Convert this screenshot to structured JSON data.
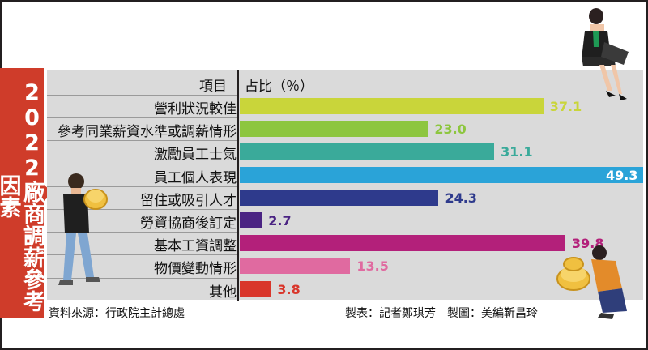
{
  "title": "2022廠商調薪參考因素",
  "colors": {
    "title_bg": "#cf3c2a",
    "panel_bg": "#dadada"
  },
  "chart_data": {
    "type": "bar",
    "orientation": "horizontal",
    "title": "2022廠商調薪參考因素",
    "category_header": "項目",
    "value_header": "占比（％）",
    "categories": [
      "營利狀況較佳",
      "參考同業薪資水準或調薪情形",
      "激勵員工士氣",
      "員工個人表現",
      "留住或吸引人才",
      "勞資協商後訂定",
      "基本工資調整",
      "物價變動情形",
      "其他"
    ],
    "values": [
      37.1,
      23.0,
      31.1,
      49.3,
      24.3,
      2.7,
      39.8,
      13.5,
      3.8
    ],
    "value_labels": [
      "37.1",
      "23.0",
      "31.1",
      "49.3",
      "24.3",
      "2.7",
      "39.8",
      "13.5",
      "3.8"
    ],
    "colors": [
      "#c9d53a",
      "#8dc63f",
      "#3aaa9a",
      "#2aa3d8",
      "#2e3a8c",
      "#4b2483",
      "#b3207a",
      "#e06aa0",
      "#d9362b"
    ],
    "xlim": [
      0,
      49.3
    ],
    "grid": false,
    "legend": "none"
  },
  "footer": {
    "source": "資料來源：行政院主計總處",
    "credits": "製表：記者鄭琪芳　製圖：美編靳昌玲"
  },
  "icons": {
    "top": "businesswoman-laptop-icon",
    "left": "man-carrying-coins-icon",
    "bottom_right": "woman-pushing-coins-icon"
  }
}
